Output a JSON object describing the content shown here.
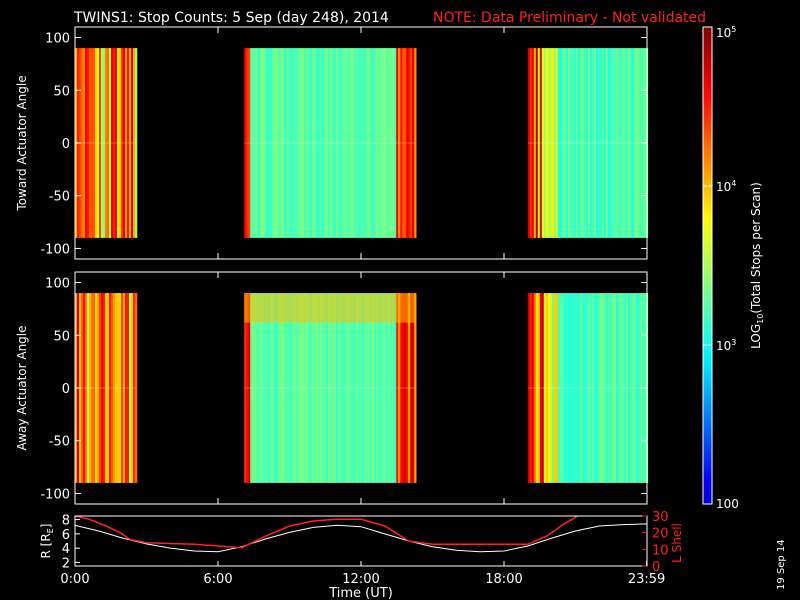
{
  "header": {
    "title": "TWINS1: Stop Counts:  5 Sep (day 248), 2014",
    "note": "NOTE: Data Preliminary - Not validated"
  },
  "footer": {
    "stamp": "19 Sep 14"
  },
  "colors": {
    "background": "#000000",
    "text": "#ffffff",
    "note": "#ff2020",
    "lshell": "#ff2020",
    "r_trace": "#ffffff"
  },
  "chart_data": [
    {
      "type": "heatmap",
      "panel": "toward",
      "ylabel": "Toward Actuator Angle",
      "ylim": [
        -110,
        110
      ],
      "yticks": [
        "100",
        "50",
        "0",
        "-50",
        "-100"
      ],
      "ytick_values": [
        100,
        50,
        0,
        -50,
        -100
      ],
      "xlim": [
        0,
        24
      ],
      "angle_range": [
        -90,
        90
      ],
      "data_intervals": [
        {
          "start": 0.0,
          "end": 2.55,
          "level": "high"
        },
        {
          "start": 7.1,
          "end": 14.3,
          "level": "low"
        },
        {
          "start": 19.0,
          "end": 24.0,
          "level": "mixed"
        }
      ]
    },
    {
      "type": "heatmap",
      "panel": "away",
      "ylabel": "Away Actuator Angle",
      "ylim": [
        -110,
        110
      ],
      "yticks": [
        "100",
        "50",
        "0",
        "-50",
        "-100"
      ],
      "ytick_values": [
        100,
        50,
        0,
        -50,
        -100
      ],
      "xlim": [
        0,
        24
      ],
      "angle_range": [
        -90,
        90
      ],
      "data_intervals": [
        {
          "start": 0.0,
          "end": 2.55,
          "level": "high"
        },
        {
          "start": 7.1,
          "end": 14.3,
          "level": "low"
        },
        {
          "start": 19.0,
          "end": 24.0,
          "level": "mixed"
        }
      ]
    },
    {
      "type": "line",
      "panel": "orbit",
      "ylabel_left": "R [R",
      "ylabel_left_sub": "E",
      "ylabel_left_end": "]",
      "ylabel_right": "L Shell",
      "ylim_left": [
        1.5,
        8.5
      ],
      "ylim_right": [
        0,
        30
      ],
      "yticks_left": [
        "8",
        "6",
        "4",
        "2"
      ],
      "ytick_values_left": [
        8,
        6,
        4,
        2
      ],
      "yticks_right": [
        "30",
        "20",
        "10",
        "0"
      ],
      "ytick_values_right": [
        30,
        20,
        10,
        0
      ],
      "xlim": [
        0,
        24
      ],
      "xticks": [
        "0:00",
        "6:00",
        "12:00",
        "18:00",
        "23:59"
      ],
      "xtick_values": [
        0,
        6,
        12,
        18,
        23.983
      ],
      "xlabel": "Time (UT)",
      "series": [
        {
          "axis": "left",
          "color": "#ffffff",
          "x": [
            0,
            1,
            2,
            3,
            4,
            5,
            6,
            7,
            8,
            9,
            10,
            11,
            12,
            13,
            14,
            15,
            16,
            17,
            18,
            19,
            20,
            21,
            22,
            23,
            24
          ],
          "y": [
            7.2,
            6.4,
            5.4,
            4.6,
            4.0,
            3.6,
            3.5,
            4.2,
            5.3,
            6.2,
            6.9,
            7.2,
            7.0,
            6.0,
            5.0,
            4.2,
            3.7,
            3.5,
            3.6,
            4.3,
            5.4,
            6.4,
            7.1,
            7.3,
            7.4
          ]
        },
        {
          "axis": "right",
          "color": "#ff2020",
          "x": [
            0,
            0.6,
            1.3,
            1.9,
            2.3,
            3,
            4,
            5,
            6,
            7,
            8,
            9,
            10,
            11,
            12,
            13,
            14,
            15,
            16,
            17,
            18,
            19,
            19.8,
            20.5,
            21.2
          ],
          "y": [
            30,
            28,
            24,
            20,
            16,
            14,
            13.5,
            13,
            12,
            11,
            18,
            24,
            27,
            28,
            28,
            24,
            15,
            13,
            13,
            13,
            13,
            13,
            18,
            25,
            31
          ]
        }
      ]
    }
  ],
  "colorbar": {
    "type": "log",
    "range": [
      100,
      100000
    ],
    "ticks": [
      {
        "mantissa": "10",
        "exp": "5",
        "value": 100000
      },
      {
        "mantissa": "10",
        "exp": "4",
        "value": 10000
      },
      {
        "mantissa": "10",
        "exp": "3",
        "value": 1000
      },
      {
        "mantissa": "100",
        "exp": "",
        "value": 100
      }
    ],
    "label_main": "LOG",
    "label_sub": "10",
    "label_rest": "(Total Stops per Scan)"
  }
}
